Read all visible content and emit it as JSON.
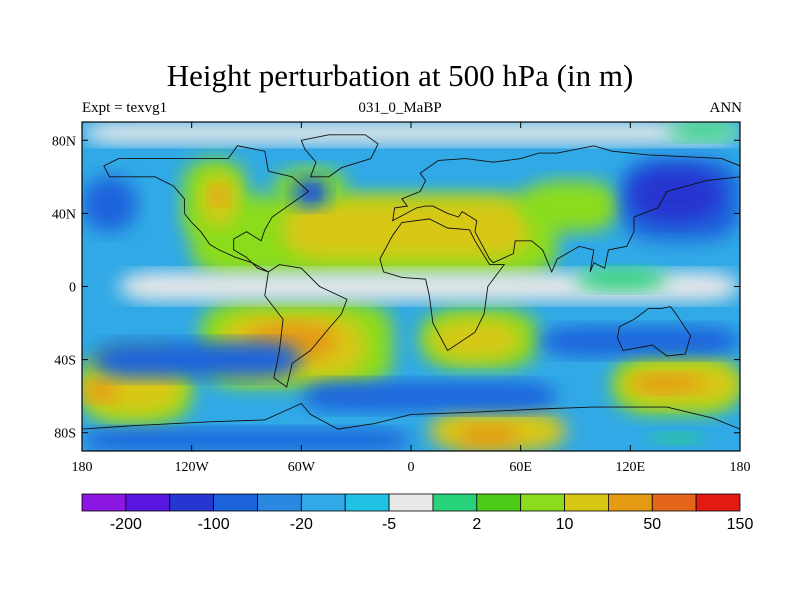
{
  "title": "Height perturbation at 500 hPa (in m)",
  "subtitle_left": "Expt = texvg1",
  "subtitle_center": "031_0_MaBP",
  "subtitle_right": "ANN",
  "map": {
    "projection": "cylindrical equidistant",
    "lon_range": [
      -180,
      180
    ],
    "lat_range": [
      -90,
      90
    ],
    "x_ticks": [
      {
        "value": -180,
        "label": "180"
      },
      {
        "value": -120,
        "label": "120W"
      },
      {
        "value": -60,
        "label": "60W"
      },
      {
        "value": 0,
        "label": "0"
      },
      {
        "value": 60,
        "label": "60E"
      },
      {
        "value": 120,
        "label": "120E"
      },
      {
        "value": 180,
        "label": "180"
      }
    ],
    "y_ticks": [
      {
        "value": 80,
        "label": "80N"
      },
      {
        "value": 40,
        "label": "40N"
      },
      {
        "value": 0,
        "label": "0"
      },
      {
        "value": -40,
        "label": "40S"
      },
      {
        "value": -80,
        "label": "80S"
      }
    ],
    "fields": [
      {
        "level": 9,
        "lon": [
          -180,
          180
        ],
        "lat": [
          -90,
          90
        ],
        "color": "#31a9e6"
      },
      {
        "level": 11,
        "lon": [
          -120,
          80
        ],
        "lat": [
          5,
          50
        ],
        "color": "#8bdc1e"
      },
      {
        "level": 12,
        "lon": [
          -70,
          65
        ],
        "lat": [
          15,
          48
        ],
        "color": "#d8c814"
      },
      {
        "level": 11,
        "lon": [
          -125,
          -90
        ],
        "lat": [
          25,
          70
        ],
        "color": "#8bdc1e"
      },
      {
        "level": 12,
        "lon": [
          -115,
          -95
        ],
        "lat": [
          33,
          62
        ],
        "color": "#d8c814"
      },
      {
        "level": 13,
        "lon": [
          -110,
          -100
        ],
        "lat": [
          45,
          55
        ],
        "color": "#e49a12"
      },
      {
        "level": 11,
        "lon": [
          -75,
          -35
        ],
        "lat": [
          45,
          65
        ],
        "color": "#8bdc1e"
      },
      {
        "level": 11,
        "lon": [
          -115,
          -10
        ],
        "lat": [
          -55,
          -8
        ],
        "color": "#8bdc1e"
      },
      {
        "level": 12,
        "lon": [
          -105,
          -25
        ],
        "lat": [
          -50,
          -15
        ],
        "color": "#d8c814"
      },
      {
        "level": 13,
        "lon": [
          -90,
          -40
        ],
        "lat": [
          -40,
          -20
        ],
        "color": "#e49a12"
      },
      {
        "level": 11,
        "lon": [
          -180,
          -120
        ],
        "lat": [
          -75,
          -35
        ],
        "color": "#8bdc1e"
      },
      {
        "level": 12,
        "lon": [
          -180,
          -125
        ],
        "lat": [
          -70,
          -40
        ],
        "color": "#d8c814"
      },
      {
        "level": 13,
        "lon": [
          -180,
          -160
        ],
        "lat": [
          -63,
          -52
        ],
        "color": "#e49a12"
      },
      {
        "level": 11,
        "lon": [
          5,
          70
        ],
        "lat": [
          -45,
          -12
        ],
        "color": "#8bdc1e"
      },
      {
        "level": 12,
        "lon": [
          10,
          60
        ],
        "lat": [
          -40,
          -18
        ],
        "color": "#d8c814"
      },
      {
        "level": 11,
        "lon": [
          110,
          180
        ],
        "lat": [
          -70,
          -38
        ],
        "color": "#8bdc1e"
      },
      {
        "level": 12,
        "lon": [
          115,
          180
        ],
        "lat": [
          -65,
          -42
        ],
        "color": "#d8c814"
      },
      {
        "level": 13,
        "lon": [
          120,
          160
        ],
        "lat": [
          -58,
          -48
        ],
        "color": "#e49a12"
      },
      {
        "level": 12,
        "lon": [
          10,
          85
        ],
        "lat": [
          -90,
          -68
        ],
        "color": "#d8c814"
      },
      {
        "level": 13,
        "lon": [
          25,
          60
        ],
        "lat": [
          -88,
          -76
        ],
        "color": "#e49a12"
      },
      {
        "level": 11,
        "lon": [
          60,
          115
        ],
        "lat": [
          30,
          58
        ],
        "color": "#8bdc1e"
      },
      {
        "level": 5,
        "lon": [
          115,
          180
        ],
        "lat": [
          25,
          70
        ],
        "color": "#1c64dc"
      },
      {
        "level": 4,
        "lon": [
          120,
          170
        ],
        "lat": [
          35,
          65
        ],
        "color": "#2636d0"
      },
      {
        "level": 5,
        "lon": [
          -65,
          -45
        ],
        "lat": [
          43,
          60
        ],
        "color": "#1c64dc"
      },
      {
        "level": 4,
        "lon": [
          -58,
          -50
        ],
        "lat": [
          48,
          55
        ],
        "color": "#2636d0"
      },
      {
        "level": 5,
        "lon": [
          -180,
          -150
        ],
        "lat": [
          30,
          60
        ],
        "color": "#1c64dc"
      },
      {
        "level": 5,
        "lon": [
          -175,
          -60
        ],
        "lat": [
          -50,
          -30
        ],
        "color": "#1c64dc"
      },
      {
        "level": 5,
        "lon": [
          -60,
          80
        ],
        "lat": [
          -68,
          -52
        ],
        "color": "#1c64dc"
      },
      {
        "level": 5,
        "lon": [
          70,
          180
        ],
        "lat": [
          -38,
          -22
        ],
        "color": "#1c64dc"
      },
      {
        "level": 5,
        "lon": [
          -180,
          0
        ],
        "lat": [
          -90,
          -78
        ],
        "color": "#1c64dc"
      },
      {
        "level": 8,
        "lon": [
          -160,
          180
        ],
        "lat": [
          -8,
          8
        ],
        "color": "#e8e8e8"
      },
      {
        "level": 8,
        "lon": [
          -180,
          180
        ],
        "lat": [
          78,
          90
        ],
        "color": "#e8e8e8"
      },
      {
        "level": 10,
        "lon": [
          90,
          140
        ],
        "lat": [
          -2,
          10
        ],
        "color": "#28d27a"
      },
      {
        "level": 10,
        "lon": [
          140,
          180
        ],
        "lat": [
          80,
          90
        ],
        "color": "#28d27a"
      },
      {
        "level": 10,
        "lon": [
          130,
          160
        ],
        "lat": [
          -86,
          -80
        ],
        "color": "#28d27a"
      }
    ],
    "continents": [
      {
        "name": "North America",
        "points": [
          [
            -168,
            66
          ],
          [
            -160,
            70
          ],
          [
            -140,
            70
          ],
          [
            -125,
            70
          ],
          [
            -100,
            70
          ],
          [
            -95,
            77
          ],
          [
            -80,
            74
          ],
          [
            -78,
            63
          ],
          [
            -65,
            60
          ],
          [
            -56,
            52
          ],
          [
            -66,
            45
          ],
          [
            -76,
            38
          ],
          [
            -80,
            31
          ],
          [
            -82,
            25
          ],
          [
            -90,
            30
          ],
          [
            -97,
            26
          ],
          [
            -97,
            20
          ],
          [
            -90,
            16
          ],
          [
            -84,
            10
          ],
          [
            -78,
            8
          ],
          [
            -87,
            13
          ],
          [
            -96,
            16
          ],
          [
            -105,
            20
          ],
          [
            -110,
            23
          ],
          [
            -115,
            30
          ],
          [
            -120,
            35
          ],
          [
            -124,
            40
          ],
          [
            -124,
            48
          ],
          [
            -130,
            55
          ],
          [
            -140,
            60
          ],
          [
            -150,
            60
          ],
          [
            -165,
            60
          ]
        ]
      },
      {
        "name": "Greenland",
        "points": [
          [
            -55,
            60
          ],
          [
            -45,
            60
          ],
          [
            -38,
            65
          ],
          [
            -22,
            70
          ],
          [
            -18,
            78
          ],
          [
            -25,
            83
          ],
          [
            -45,
            83
          ],
          [
            -60,
            80
          ],
          [
            -58,
            75
          ],
          [
            -52,
            68
          ]
        ]
      },
      {
        "name": "South America",
        "points": [
          [
            -78,
            8
          ],
          [
            -72,
            12
          ],
          [
            -60,
            10
          ],
          [
            -50,
            0
          ],
          [
            -35,
            -7
          ],
          [
            -38,
            -15
          ],
          [
            -45,
            -23
          ],
          [
            -55,
            -35
          ],
          [
            -65,
            -42
          ],
          [
            -68,
            -55
          ],
          [
            -75,
            -50
          ],
          [
            -72,
            -35
          ],
          [
            -70,
            -18
          ],
          [
            -80,
            -5
          ]
        ]
      },
      {
        "name": "Africa",
        "points": [
          [
            -17,
            15
          ],
          [
            -10,
            28
          ],
          [
            -5,
            35
          ],
          [
            10,
            37
          ],
          [
            20,
            32
          ],
          [
            32,
            31
          ],
          [
            35,
            25
          ],
          [
            43,
            12
          ],
          [
            51,
            12
          ],
          [
            42,
            0
          ],
          [
            40,
            -15
          ],
          [
            35,
            -25
          ],
          [
            20,
            -35
          ],
          [
            12,
            -20
          ],
          [
            10,
            -5
          ],
          [
            8,
            4
          ],
          [
            -5,
            5
          ],
          [
            -15,
            8
          ]
        ]
      },
      {
        "name": "Eurasia",
        "points": [
          [
            -10,
            36
          ],
          [
            -9,
            43
          ],
          [
            -2,
            44
          ],
          [
            -5,
            48
          ],
          [
            5,
            52
          ],
          [
            8,
            58
          ],
          [
            5,
            62
          ],
          [
            15,
            69
          ],
          [
            30,
            70
          ],
          [
            45,
            68
          ],
          [
            60,
            70
          ],
          [
            70,
            73
          ],
          [
            80,
            73
          ],
          [
            100,
            77
          ],
          [
            110,
            74
          ],
          [
            130,
            72
          ],
          [
            150,
            71
          ],
          [
            170,
            70
          ],
          [
            180,
            66
          ],
          [
            180,
            60
          ],
          [
            162,
            58
          ],
          [
            140,
            52
          ],
          [
            135,
            43
          ],
          [
            122,
            38
          ],
          [
            122,
            30
          ],
          [
            118,
            22
          ],
          [
            108,
            20
          ],
          [
            106,
            10
          ],
          [
            100,
            13
          ],
          [
            98,
            8
          ],
          [
            100,
            20
          ],
          [
            92,
            22
          ],
          [
            80,
            15
          ],
          [
            77,
            8
          ],
          [
            72,
            20
          ],
          [
            66,
            25
          ],
          [
            57,
            25
          ],
          [
            56,
            18
          ],
          [
            45,
            13
          ],
          [
            43,
            15
          ],
          [
            35,
            30
          ],
          [
            36,
            36
          ],
          [
            28,
            41
          ],
          [
            26,
            38
          ],
          [
            20,
            40
          ],
          [
            12,
            44
          ],
          [
            8,
            44
          ],
          [
            3,
            43
          ]
        ]
      },
      {
        "name": "Australia",
        "points": [
          [
            114,
            -22
          ],
          [
            122,
            -18
          ],
          [
            130,
            -12
          ],
          [
            137,
            -12
          ],
          [
            142,
            -11
          ],
          [
            145,
            -15
          ],
          [
            153,
            -27
          ],
          [
            150,
            -37
          ],
          [
            140,
            -38
          ],
          [
            132,
            -32
          ],
          [
            116,
            -35
          ],
          [
            113,
            -28
          ]
        ]
      },
      {
        "name": "Antarctica",
        "points": [
          [
            -180,
            -78
          ],
          [
            -150,
            -76
          ],
          [
            -110,
            -74
          ],
          [
            -80,
            -73
          ],
          [
            -60,
            -64
          ],
          [
            -55,
            -70
          ],
          [
            -40,
            -78
          ],
          [
            -20,
            -75
          ],
          [
            0,
            -70
          ],
          [
            30,
            -69
          ],
          [
            70,
            -67
          ],
          [
            100,
            -66
          ],
          [
            140,
            -66
          ],
          [
            165,
            -72
          ],
          [
            180,
            -78
          ],
          [
            180,
            -90
          ],
          [
            -180,
            -90
          ]
        ]
      }
    ]
  },
  "colorbar": {
    "colors": [
      "#8b17e0",
      "#5a17e0",
      "#2636d0",
      "#1c64dc",
      "#2b88e0",
      "#31a9e6",
      "#21c1e4",
      "#e8e8e8",
      "#28d27a",
      "#4ccc18",
      "#8bdc1e",
      "#d8c814",
      "#e49a12",
      "#e4661a",
      "#e21a12"
    ],
    "labels": [
      {
        "boundary": 1,
        "text": "-200"
      },
      {
        "boundary": 3,
        "text": "-100"
      },
      {
        "boundary": 5,
        "text": "-20"
      },
      {
        "boundary": 7,
        "text": "-5"
      },
      {
        "boundary": 9,
        "text": "2"
      },
      {
        "boundary": 11,
        "text": "10"
      },
      {
        "boundary": 13,
        "text": "50"
      },
      {
        "boundary": 15,
        "text": "150"
      }
    ]
  }
}
